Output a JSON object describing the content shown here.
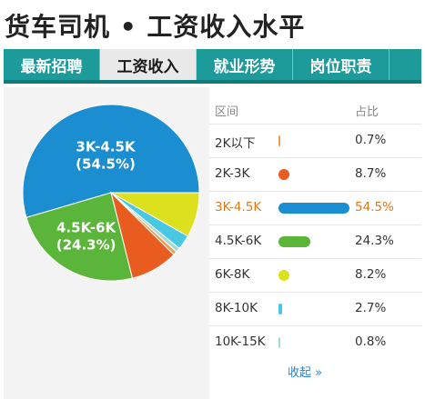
{
  "page": {
    "title": "货车司机 • 工资收入水平"
  },
  "tabs": [
    {
      "label": "最新招聘",
      "active": false
    },
    {
      "label": "工资收入",
      "active": true
    },
    {
      "label": "就业形势",
      "active": false
    },
    {
      "label": "岗位职责",
      "active": false
    }
  ],
  "table": {
    "col_range": "区间",
    "col_share": "占比",
    "collapse_label": "收起 »"
  },
  "colors": {
    "tab_bg": "#1d9a9a",
    "highlight_text": "#e0781e"
  },
  "chart_data": {
    "type": "pie",
    "slices": [
      {
        "label": "2K以下",
        "value": 0.7,
        "display": "0.7%",
        "color": "#e8a05a"
      },
      {
        "label": "2K-3K",
        "value": 8.7,
        "display": "8.7%",
        "color": "#e85c1f"
      },
      {
        "label": "3K-4.5K",
        "value": 54.5,
        "display": "54.5%",
        "color": "#1a8ed1",
        "highlight": true
      },
      {
        "label": "4.5K-6K",
        "value": 24.3,
        "display": "24.3%",
        "color": "#5ab53a"
      },
      {
        "label": "6K-8K",
        "value": 8.2,
        "display": "8.2%",
        "color": "#dde01c"
      },
      {
        "label": "8K-10K",
        "value": 2.7,
        "display": "2.7%",
        "color": "#49c8e2"
      },
      {
        "label": "10K-15K",
        "value": 0.8,
        "display": "0.8%",
        "color": "#a9d8d8"
      }
    ],
    "pie_order": [
      "3K-4.5K",
      "6K-8K",
      "8K-10K",
      "10K-15K",
      "2K以下",
      "2K-3K",
      "4.5K-6K"
    ],
    "pie_labels": [
      {
        "slice": "3K-4.5K",
        "name": "3K-4.5K",
        "pct": "(54.5%)"
      },
      {
        "slice": "4.5K-6K",
        "name": "4.5K-6K",
        "pct": "(24.3%)"
      }
    ]
  }
}
